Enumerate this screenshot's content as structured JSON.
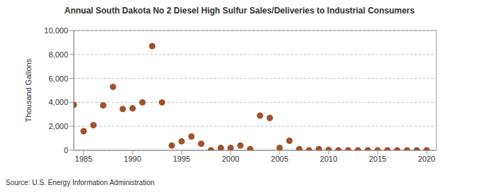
{
  "chart_data": {
    "type": "scatter",
    "title": "Annual South Dakota No 2 Diesel High Sulfur Sales/Deliveries to Industrial Consumers",
    "y_label": "Thousand Gallons",
    "source": "Source: U.S. Energy Information Administration",
    "x": [
      1984,
      1985,
      1986,
      1987,
      1988,
      1989,
      1990,
      1991,
      1992,
      1993,
      1994,
      1995,
      1996,
      1997,
      1998,
      1999,
      2000,
      2001,
      2002,
      2003,
      2004,
      2005,
      2006,
      2007,
      2008,
      2009,
      2010,
      2011,
      2012,
      2013,
      2014,
      2015,
      2016,
      2017,
      2018,
      2019,
      2020
    ],
    "values": [
      3800,
      1600,
      2100,
      3750,
      5300,
      3450,
      3500,
      4000,
      8700,
      4000,
      400,
      750,
      1150,
      550,
      0,
      200,
      200,
      400,
      100,
      2900,
      2700,
      200,
      800,
      100,
      0,
      100,
      30,
      0,
      0,
      0,
      0,
      0,
      0,
      0,
      0,
      0,
      0
    ],
    "color": "#a0522d",
    "marker": "circle",
    "xlim": [
      1984,
      2021
    ],
    "xticks": [
      1985,
      1990,
      1995,
      2000,
      2005,
      2010,
      2015,
      2020
    ],
    "ylim": [
      0,
      10000
    ],
    "yticks": [
      0,
      {
        "value": 2000,
        "label": "2,000"
      },
      {
        "value": 4000,
        "label": "4,000"
      },
      {
        "value": 6000,
        "label": "6,000"
      },
      {
        "value": 8000,
        "label": "8,000"
      },
      {
        "value": 10000,
        "label": "10,000"
      }
    ],
    "grid": true
  }
}
